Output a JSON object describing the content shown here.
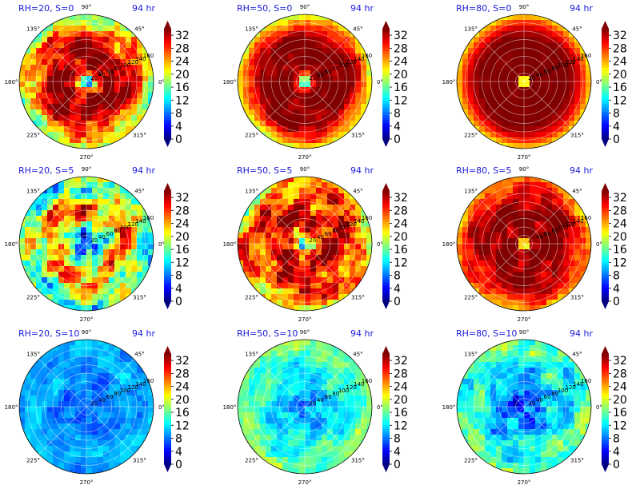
{
  "chart_data": {
    "type": "heatmap",
    "layout": "3x3 grid of polar filled-contour plots, each with its own vertical colorbar",
    "angle_ticks": [
      "90°",
      "45°",
      "0°",
      "315°",
      "270°",
      "225°",
      "180°",
      "135°"
    ],
    "radial_ticks": [
      "20",
      "40",
      "60",
      "80",
      "100",
      "120",
      "140",
      "160"
    ],
    "colorbar": {
      "ticks": [
        "0",
        "4",
        "8",
        "12",
        "16",
        "20",
        "24",
        "28",
        "32"
      ],
      "range": [
        0,
        34
      ],
      "colormap": "jet",
      "extend": "both"
    },
    "panels": [
      {
        "title": "RH=20, S=0",
        "time": "94 hr",
        "profile": [
          0,
          24,
          32,
          34,
          34,
          33,
          29,
          26,
          22,
          18
        ],
        "noise": 5
      },
      {
        "title": "RH=50, S=0",
        "time": "94 hr",
        "profile": [
          5,
          28,
          34,
          34,
          34,
          34,
          34,
          30,
          26,
          20
        ],
        "noise": 2
      },
      {
        "title": "RH=80, S=0",
        "time": "94 hr",
        "profile": [
          8,
          34,
          34,
          34,
          34,
          34,
          34,
          32,
          28,
          22
        ],
        "noise": 0.5
      },
      {
        "title": "RH=20, S=5",
        "time": "94 hr",
        "profile": [
          2,
          8,
          14,
          20,
          24,
          26,
          22,
          18,
          16,
          15
        ],
        "noise": 7
      },
      {
        "title": "RH=50, S=5",
        "time": "94 hr",
        "profile": [
          2,
          22,
          30,
          32,
          32,
          30,
          28,
          27,
          26,
          22
        ],
        "noise": 6
      },
      {
        "title": "RH=80, S=5",
        "time": "94 hr",
        "profile": [
          10,
          34,
          34,
          34,
          34,
          34,
          32,
          30,
          28,
          24
        ],
        "noise": 3
      },
      {
        "title": "RH=20, S=10",
        "time": "94 hr",
        "profile": [
          8,
          8,
          8,
          8,
          9,
          9,
          10,
          10,
          10,
          10
        ],
        "noise": 2
      },
      {
        "title": "RH=50, S=10",
        "time": "94 hr",
        "profile": [
          8,
          9,
          10,
          11,
          12,
          13,
          14,
          15,
          16,
          17
        ],
        "noise": 3
      },
      {
        "title": "RH=80, S=10",
        "time": "94 hr",
        "profile": [
          6,
          7,
          8,
          10,
          11,
          12,
          13,
          14,
          15,
          16
        ],
        "noise": 4
      }
    ]
  }
}
